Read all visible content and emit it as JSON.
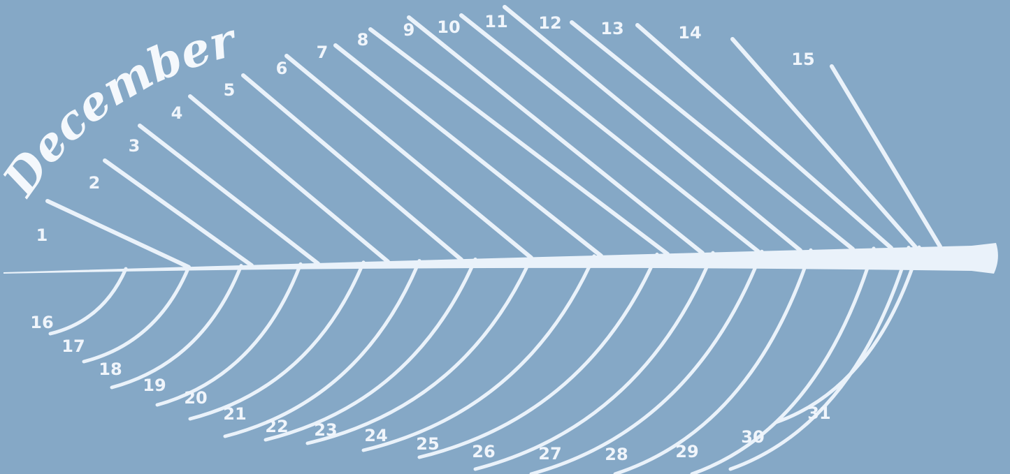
{
  "title": "December",
  "days": [
    1,
    2,
    3,
    4,
    5,
    6,
    7,
    8,
    9,
    10,
    11,
    12,
    13,
    14,
    15,
    16,
    17,
    18,
    19,
    20,
    21,
    22,
    23,
    24,
    25,
    26,
    27,
    28,
    29,
    30,
    31
  ]
}
